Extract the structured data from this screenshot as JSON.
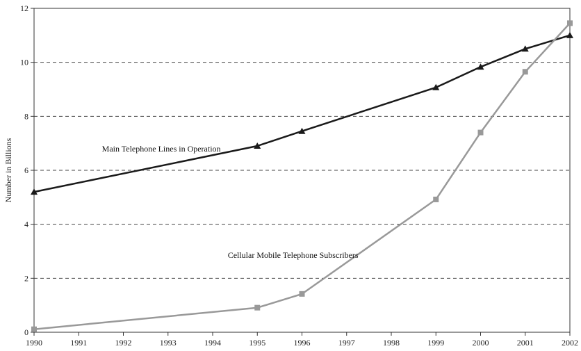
{
  "chart_data": {
    "type": "line",
    "title": "",
    "xlabel": "",
    "ylabel": "Number in Billions",
    "x": [
      1990,
      1991,
      1992,
      1993,
      1994,
      1995,
      1996,
      1997,
      1998,
      1999,
      2000,
      2001,
      2002
    ],
    "xlim": [
      1990,
      2002
    ],
    "ylim": [
      0,
      12
    ],
    "y_ticks": [
      "0",
      "2",
      "4",
      "6",
      "8",
      "10",
      "12"
    ],
    "x_ticks": [
      "1990",
      "1991",
      "1992",
      "1993",
      "1994",
      "1995",
      "1996",
      "1997",
      "1998",
      "1999",
      "2000",
      "2001",
      "2002"
    ],
    "grid": "horizontal dashed",
    "legend": "none",
    "series": [
      {
        "name": "Main Telephone Lines in Operation",
        "color": "#1a1a1a",
        "marker": "triangle",
        "points": [
          [
            1990,
            5.2
          ],
          [
            1995,
            6.9
          ],
          [
            1996,
            7.45
          ],
          [
            1999,
            9.07
          ],
          [
            2000,
            9.83
          ],
          [
            2001,
            10.5
          ],
          [
            2002,
            11.0
          ]
        ]
      },
      {
        "name": "Cellular Mobile Telephone Subscribers",
        "color": "#999999",
        "marker": "square",
        "points": [
          [
            1990,
            0.11
          ],
          [
            1995,
            0.91
          ],
          [
            1996,
            1.42
          ],
          [
            1999,
            4.92
          ],
          [
            2000,
            7.4
          ],
          [
            2001,
            9.65
          ],
          [
            2002,
            11.45
          ]
        ]
      }
    ],
    "annotations": [
      {
        "text": "Main Telephone Lines in Operation",
        "x": 1992.85,
        "y": 6.7
      },
      {
        "text": "Cellular Mobile Telephone Subscribers",
        "x": 1995.8,
        "y": 2.75
      }
    ]
  }
}
